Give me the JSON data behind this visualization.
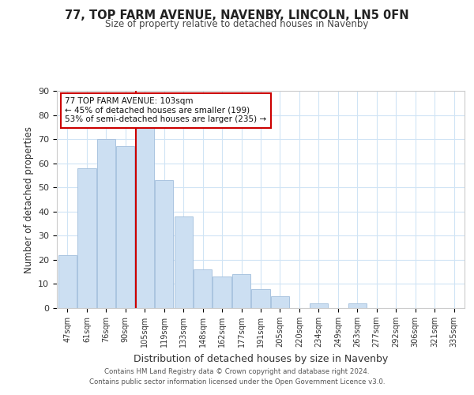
{
  "title": "77, TOP FARM AVENUE, NAVENBY, LINCOLN, LN5 0FN",
  "subtitle": "Size of property relative to detached houses in Navenby",
  "xlabel": "Distribution of detached houses by size in Navenby",
  "ylabel": "Number of detached properties",
  "bar_labels": [
    "47sqm",
    "61sqm",
    "76sqm",
    "90sqm",
    "105sqm",
    "119sqm",
    "133sqm",
    "148sqm",
    "162sqm",
    "177sqm",
    "191sqm",
    "205sqm",
    "220sqm",
    "234sqm",
    "249sqm",
    "263sqm",
    "277sqm",
    "292sqm",
    "306sqm",
    "321sqm",
    "335sqm"
  ],
  "bar_values": [
    22,
    58,
    70,
    67,
    75,
    53,
    38,
    16,
    13,
    14,
    8,
    5,
    0,
    2,
    0,
    2,
    0,
    0,
    0,
    0,
    0
  ],
  "bar_color": "#ccdff2",
  "bar_edge_color": "#aac4e0",
  "red_line_index": 4,
  "annotation_title": "77 TOP FARM AVENUE: 103sqm",
  "annotation_line1": "← 45% of detached houses are smaller (199)",
  "annotation_line2": "53% of semi-detached houses are larger (235) →",
  "annotation_box_color": "#ffffff",
  "annotation_border_color": "#cc0000",
  "ylim": [
    0,
    90
  ],
  "yticks": [
    0,
    10,
    20,
    30,
    40,
    50,
    60,
    70,
    80,
    90
  ],
  "footer_line1": "Contains HM Land Registry data © Crown copyright and database right 2024.",
  "footer_line2": "Contains public sector information licensed under the Open Government Licence v3.0.",
  "bg_color": "#ffffff",
  "grid_color": "#d0e4f5"
}
